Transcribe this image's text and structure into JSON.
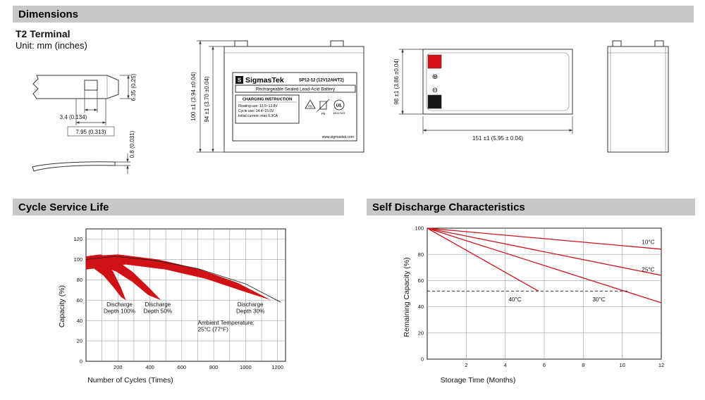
{
  "sections": {
    "dimensions": "Dimensions",
    "cycle_service_life": "Cycle Service Life",
    "self_discharge": "Self Discharge Characteristics"
  },
  "dimensions_block": {
    "terminal_type": "T2 Terminal",
    "unit_note": "Unit: mm (inches)",
    "terminal_detail": {
      "height": "6.35 (0.25)",
      "slot_width": "3.4 (0.134)",
      "tab_width": "7.95 (0.313)",
      "thickness": "0.8 (0.031)"
    },
    "front_view": {
      "overall_height": "100 ±1 (3.94 ±0.04)",
      "case_height": "94 ±1 (3.70 ±0.04)"
    },
    "top_view": {
      "width_dim": "98 ±1 (3.86 ±0.04)",
      "length_dim": "151 ±1 (5.95 ± 0.04)",
      "plus_symbol": "⊕",
      "minus_symbol": "⊖"
    },
    "battery_label": {
      "logo_letter": "S",
      "brand": "SigmasTek",
      "model": "SP12-12 (12V12AH/T2)",
      "type_line": "Rechargeable Sealed Lead-Acid Battery",
      "charging_title": "CHARGING INSTRUCTION",
      "charging_line1": "Floating use: 13.5~13.8V",
      "charging_line2": "Cycle use: 14.4~15.0V",
      "charging_line3": "Initial current: max 0.3CA",
      "pb_left": "Pb",
      "pb_right": "Pb",
      "ul_mark": "UL",
      "ul_code": "MH47503",
      "website": "www.sigmastek.com"
    }
  },
  "colors": {
    "header_bg": "#c8c8c8",
    "chart_red": "#d01217",
    "grid": "#93a59f",
    "terminal_red": "#d8121a",
    "terminal_black": "#161616"
  },
  "chart_data": [
    {
      "name": "cycle_service_life",
      "type": "area",
      "title": "Cycle Service Life",
      "xlabel": "Number of Cycles (Times)",
      "ylabel": "Capacity (%)",
      "xlim": [
        0,
        1250
      ],
      "ylim": [
        0,
        130
      ],
      "xticks": [
        200,
        400,
        600,
        800,
        1000,
        1200
      ],
      "yticks": [
        0,
        20,
        40,
        60,
        80,
        100,
        120
      ],
      "grid": true,
      "bands": [
        {
          "name": "Discharge Depth 100%",
          "upper": [
            [
              0,
              102
            ],
            [
              50,
              104
            ],
            [
              110,
              100
            ],
            [
              170,
              88
            ],
            [
              220,
              72
            ],
            [
              250,
              60
            ]
          ],
          "lower": [
            [
              0,
              90
            ],
            [
              50,
              91
            ],
            [
              110,
              84
            ],
            [
              170,
              73
            ],
            [
              220,
              63
            ],
            [
              250,
              60
            ]
          ]
        },
        {
          "name": "Discharge Depth 50%",
          "upper": [
            [
              0,
              103
            ],
            [
              90,
              105
            ],
            [
              190,
              99
            ],
            [
              290,
              88
            ],
            [
              390,
              73
            ],
            [
              470,
              60
            ]
          ],
          "lower": [
            [
              0,
              91
            ],
            [
              90,
              94
            ],
            [
              190,
              88
            ],
            [
              290,
              78
            ],
            [
              390,
              65
            ],
            [
              470,
              60
            ]
          ]
        },
        {
          "name": "Discharge Depth 30%",
          "upper": [
            [
              0,
              103
            ],
            [
              200,
              105
            ],
            [
              450,
              100
            ],
            [
              700,
              91
            ],
            [
              950,
              77
            ],
            [
              1160,
              60
            ]
          ],
          "lower": [
            [
              0,
              92
            ],
            [
              250,
              95
            ],
            [
              500,
              90
            ],
            [
              750,
              81
            ],
            [
              1000,
              68
            ],
            [
              1160,
              60
            ]
          ]
        }
      ],
      "envelope_line": [
        [
          0,
          100
        ],
        [
          180,
          103
        ],
        [
          430,
          99
        ],
        [
          700,
          91
        ],
        [
          1000,
          76
        ],
        [
          1220,
          58
        ]
      ],
      "annotations": [
        {
          "lines": [
            "Discharge",
            "Depth 100%"
          ],
          "x": 210,
          "y": 54,
          "anchor": "middle"
        },
        {
          "lines": [
            "Discharge",
            "Depth 50%"
          ],
          "x": 450,
          "y": 54,
          "anchor": "middle"
        },
        {
          "lines": [
            "Discharge",
            "Depth 30%"
          ],
          "x": 1030,
          "y": 54,
          "anchor": "middle"
        },
        {
          "lines": [
            "Ambient Temperature:",
            "25°C (77°F)"
          ],
          "x": 700,
          "y": 36,
          "anchor": "start"
        }
      ]
    },
    {
      "name": "self_discharge",
      "type": "line",
      "title": "Self Discharge Characteristics",
      "xlabel": "Storage Time (Months)",
      "ylabel": "Remaining Capacity (%)",
      "xlim": [
        0,
        12
      ],
      "ylim": [
        0,
        100
      ],
      "xticks": [
        2,
        4,
        6,
        8,
        10,
        12
      ],
      "yticks": [
        0,
        20,
        40,
        60,
        80,
        100
      ],
      "grid": true,
      "series": [
        {
          "name": "10°C",
          "points": [
            [
              0,
              100
            ],
            [
              12,
              84
            ]
          ]
        },
        {
          "name": "25°C",
          "points": [
            [
              0,
              100
            ],
            [
              12,
              64
            ]
          ]
        },
        {
          "name": "30°C",
          "points": [
            [
              0,
              100
            ],
            [
              12,
              43
            ]
          ]
        },
        {
          "name": "40°C",
          "points": [
            [
              0,
              100
            ],
            [
              5.7,
              52
            ]
          ]
        }
      ],
      "dashed_line": {
        "points": [
          [
            0,
            52
          ],
          [
            10.35,
            52
          ]
        ]
      },
      "annotations": [
        {
          "lines": [
            "10°C"
          ],
          "x": 11.0,
          "y": 88,
          "anchor": "start"
        },
        {
          "lines": [
            "25°C"
          ],
          "x": 11.0,
          "y": 67,
          "anchor": "start"
        },
        {
          "lines": [
            "30°C"
          ],
          "x": 8.8,
          "y": 44,
          "anchor": "middle"
        },
        {
          "lines": [
            "40°C"
          ],
          "x": 4.5,
          "y": 44,
          "anchor": "middle"
        }
      ]
    }
  ]
}
